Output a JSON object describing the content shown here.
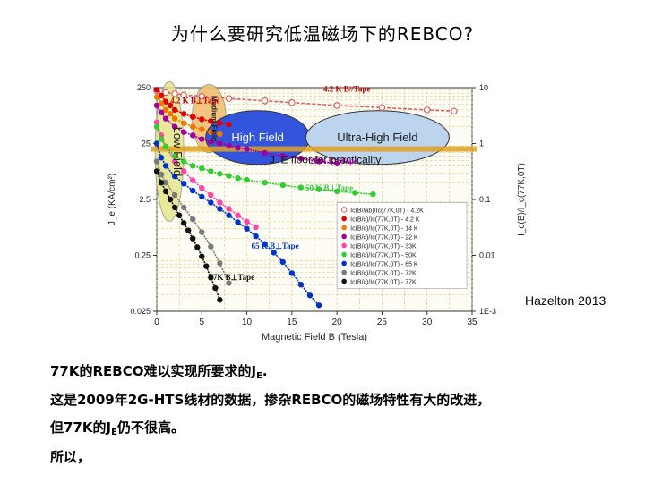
{
  "slide": {
    "title": "为什么要研究低温磁场下的REBCO?",
    "credit": "Hazelton 2013",
    "lines": [
      {
        "pre": "77K的REBCO难以实现所要求的J",
        "sub": "E",
        "post": "."
      },
      {
        "pre": "这是2009年2G-HTS线材的数据，掺杂REBCO的磁场特性有大的改进，",
        "sub": "",
        "post": ""
      },
      {
        "pre": "但77K的J",
        "sub": "E",
        "post": "仍不很高。"
      },
      {
        "pre": "所以，",
        "sub": "",
        "post": ""
      }
    ]
  },
  "colors": {
    "c42open": "#e06060",
    "c42": "#e00000",
    "c14": "#f07800",
    "c22": "#a000a0",
    "c33": "#ff44aa",
    "c50": "#33cc33",
    "c65": "#0033cc",
    "c72": "#7a7a7a",
    "c77": "#111111",
    "floor": "#e0a020",
    "lowField": "#e6e68c",
    "medField": "#f0c070",
    "highField": "#3355dd",
    "ultraField": "#bcd4ee"
  },
  "chart_data": {
    "type": "scatter",
    "xlabel": "Magnetic Field B (Tesla)",
    "ylabel_left": "J_e (KA/cm²)",
    "ylabel_right": "I_c(B)/I_c(77K,0T)",
    "xlim": [
      0,
      35
    ],
    "ylim_left": [
      0.025,
      250
    ],
    "ylim_right": [
      0.001,
      10
    ],
    "y_scale": "log",
    "x_ticks": [
      "0",
      "5",
      "10",
      "15",
      "20",
      "25",
      "30",
      "35"
    ],
    "y_left_ticks": [
      "250",
      "25",
      "2.5",
      "0.25",
      "0.025"
    ],
    "y_right_ticks": [
      "10",
      "1",
      "0.1",
      "0.01",
      "1E-3"
    ],
    "grid": true,
    "legend_position": "right-middle",
    "regions": [
      {
        "label": "Low Field"
      },
      {
        "label": "Medium Field"
      },
      {
        "label": "High Field"
      },
      {
        "label": "Ultra-High Field"
      }
    ],
    "floor_label": "J_E floor for practicality",
    "floor_value": 20,
    "annotations": [
      "4.2 K B//Tape",
      "4.2 K B⊥Tape",
      "20 K B⊥Tape",
      "50 K B⊥Tape",
      "65 K B⊥Tape",
      "77K B⊥Tape"
    ],
    "series": [
      {
        "name": "Ic(B//ab)/Ic(77K,0T) - 4.2K",
        "color": "#e06060",
        "open": true,
        "x": [
          0,
          1,
          2,
          3,
          5,
          8,
          12,
          15,
          20,
          25,
          30,
          33
        ],
        "y": [
          220,
          205,
          195,
          185,
          175,
          160,
          145,
          135,
          120,
          110,
          100,
          95
        ]
      },
      {
        "name": "Ic(B/c)/Ic(77K,0T) - 4.2 K",
        "color": "#e00000",
        "x": [
          0,
          0.5,
          1,
          1.5,
          2,
          3,
          4,
          5,
          6,
          7,
          8
        ],
        "y": [
          230,
          180,
          140,
          120,
          100,
          85,
          75,
          68,
          63,
          58,
          55
        ]
      },
      {
        "name": "Ic(B/c)/Ic(77K,0T) - 14 K",
        "color": "#f07800",
        "x": [
          0,
          0.5,
          1,
          1.5,
          2,
          3,
          4,
          5,
          6,
          7
        ],
        "y": [
          170,
          130,
          100,
          85,
          70,
          58,
          50,
          45,
          40,
          37
        ]
      },
      {
        "name": "Ic(B/c)/Ic(77K,0T) - 22 K",
        "color": "#a000a0",
        "x": [
          0,
          0.5,
          1,
          2,
          3,
          4,
          5,
          6,
          7,
          8,
          9,
          10,
          12,
          14,
          16,
          18,
          20
        ],
        "y": [
          120,
          90,
          70,
          50,
          40,
          35,
          30,
          27,
          25,
          23,
          21,
          20,
          17,
          15,
          13.5,
          12,
          11
        ]
      },
      {
        "name": "Ic(B/c)/Ic(77K,0T) - 33K",
        "color": "#ff44aa",
        "x": [
          0,
          0.5,
          1,
          2,
          3,
          4,
          5,
          6,
          7,
          8,
          9,
          10,
          11
        ],
        "y": [
          60,
          35,
          22,
          12,
          8,
          5.5,
          4,
          3,
          2.2,
          1.7,
          1.3,
          1,
          0.8
        ]
      },
      {
        "name": "Ic(B/c)/Ic(77K,0T) - 50K",
        "color": "#33cc33",
        "x": [
          0,
          0.5,
          1,
          2,
          3,
          4,
          5,
          6,
          7,
          8,
          9,
          10,
          12,
          14,
          16,
          18,
          20,
          22,
          24
        ],
        "y": [
          50,
          30,
          22,
          15,
          12,
          10,
          9,
          8,
          7.2,
          6.6,
          6,
          5.6,
          5,
          4.5,
          4.1,
          3.8,
          3.5,
          3.3,
          3.1
        ]
      },
      {
        "name": "Ic(B/c)/Ic(77K,0T) - 65 K",
        "color": "#0033cc",
        "x": [
          0,
          0.5,
          1,
          2,
          3,
          4,
          5,
          6,
          7,
          8,
          9,
          10,
          11,
          12,
          13,
          14,
          15,
          16,
          17,
          18
        ],
        "y": [
          25,
          14,
          10,
          6.5,
          4.8,
          3.6,
          2.8,
          2.2,
          1.7,
          1.3,
          0.98,
          0.75,
          0.55,
          0.4,
          0.28,
          0.19,
          0.12,
          0.075,
          0.048,
          0.032
        ]
      },
      {
        "name": "Ic(B/c)/Ic(77K,0T) - 72K",
        "color": "#7a7a7a",
        "x": [
          0,
          0.5,
          1,
          2,
          3,
          4,
          5,
          6,
          7,
          8
        ],
        "y": [
          12,
          7,
          5,
          3,
          1.8,
          1.1,
          0.65,
          0.36,
          0.18,
          0.08
        ]
      },
      {
        "name": "Ic(B/c)/Ic(77K,0T) - 77K",
        "color": "#111111",
        "x": [
          0,
          0.5,
          1,
          1.5,
          2,
          2.5,
          3,
          3.5,
          4,
          4.5,
          5,
          5.5,
          6,
          6.5,
          7
        ],
        "y": [
          8,
          5,
          3.5,
          2.5,
          1.8,
          1.3,
          0.95,
          0.7,
          0.5,
          0.35,
          0.24,
          0.16,
          0.1,
          0.065,
          0.04
        ]
      }
    ]
  }
}
